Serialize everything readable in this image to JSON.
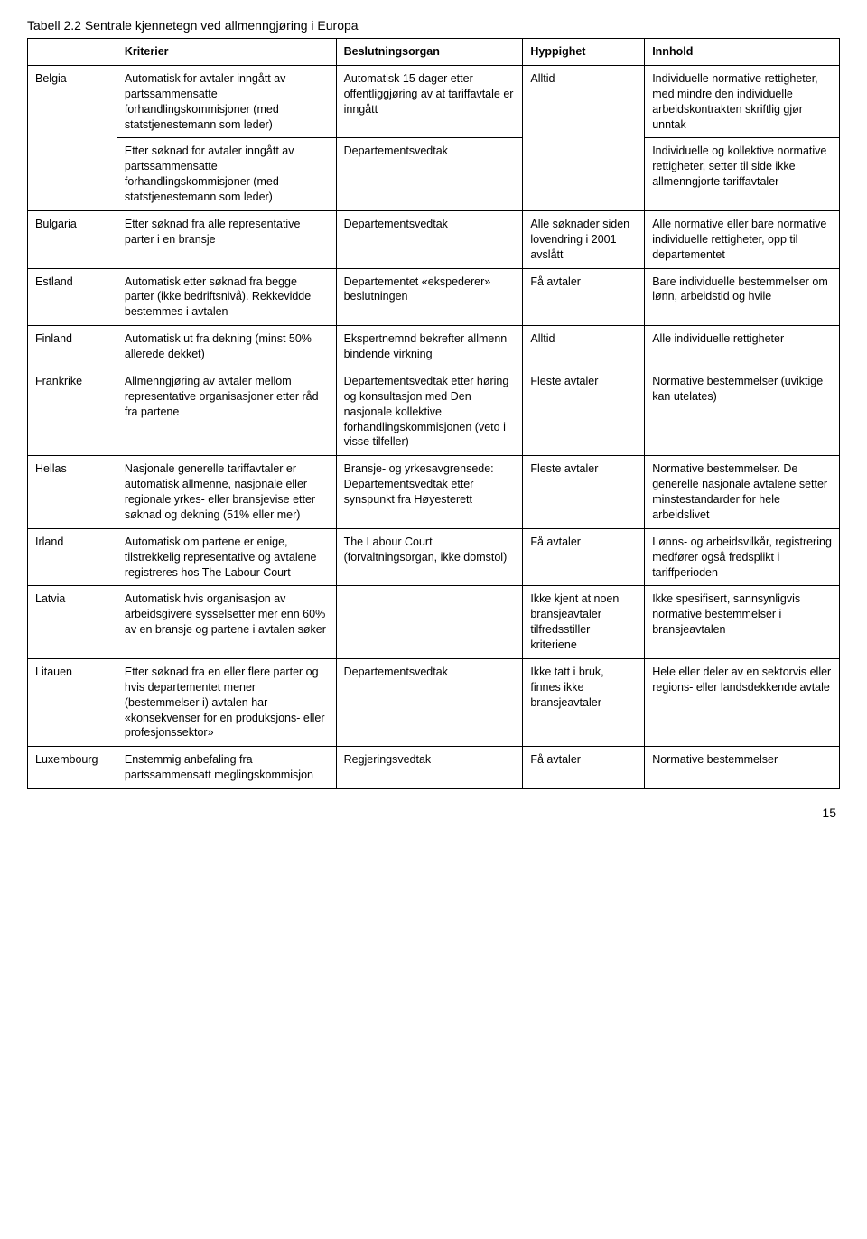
{
  "title": "Tabell 2.2 Sentrale kjennetegn ved allmenngjøring i Europa",
  "headers": {
    "c1": "",
    "c2": "Kriterier",
    "c3": "Beslutningsorgan",
    "c4": "Hyppighet",
    "c5": "Innhold"
  },
  "rows": {
    "belgia": {
      "country": "Belgia",
      "r1": {
        "kriterier": "Automatisk for avtaler inngått av partssammensatte forhandlingskommisjoner (med statstjenestemann som leder)",
        "beslut": "Automatisk 15 dager etter offentliggjøring av at tariffavtale er inngått",
        "hypp": "Alltid",
        "innhold": "Individuelle normative rettigheter, med mindre den individuelle arbeidskontrakten skriftlig gjør unntak"
      },
      "r2": {
        "kriterier": "Etter søknad for avtaler inngått av partssammensatte forhandlingskommisjoner (med statstjenestemann som leder)",
        "beslut": "Departementsvedtak",
        "innhold": "Individuelle og kollektive normative rettigheter, setter til side ikke allmenngjorte tariffavtaler"
      }
    },
    "bulgaria": {
      "country": "Bulgaria",
      "kriterier": "Etter søknad fra alle representative parter i en bransje",
      "beslut": "Departementsvedtak",
      "hypp": "Alle søknader siden lovendring i 2001 avslått",
      "innhold": "Alle normative eller bare normative individuelle rettigheter, opp til departementet"
    },
    "estland": {
      "country": "Estland",
      "kriterier": "Automatisk etter søknad fra begge parter (ikke bedriftsnivå). Rekkevidde bestemmes i avtalen",
      "beslut": "Departementet «ekspederer» beslutningen",
      "hypp": "Få avtaler",
      "innhold": "Bare individuelle bestemmelser om lønn, arbeidstid og hvile"
    },
    "finland": {
      "country": "Finland",
      "kriterier": "Automatisk ut fra dekning (minst 50% allerede dekket)",
      "beslut": "Ekspertnemnd bekrefter allmenn bindende virkning",
      "hypp": "Alltid",
      "innhold": "Alle individuelle rettigheter"
    },
    "frankrike": {
      "country": "Frankrike",
      "kriterier": "Allmenngjøring av avtaler mellom representative organisasjoner etter råd fra partene",
      "beslut": "Departementsvedtak etter høring og konsultasjon med Den nasjonale kollektive forhandlingskommisjonen (veto i visse tilfeller)",
      "hypp": "Fleste avtaler",
      "innhold": "Normative bestemmelser (uviktige kan utelates)"
    },
    "hellas": {
      "country": "Hellas",
      "kriterier": "Nasjonale generelle tariffavtaler er automatisk allmenne, nasjonale eller regionale yrkes- eller bransjevise etter søknad og dekning (51% eller mer)",
      "beslut": "Bransje- og yrkesavgrensede: Departementsvedtak etter synspunkt fra Høyesterett",
      "hypp": "Fleste avtaler",
      "innhold": "Normative bestemmelser. De generelle nasjonale avtalene setter minstestandarder for hele arbeidslivet"
    },
    "irland": {
      "country": "Irland",
      "kriterier": "Automatisk om partene er enige, tilstrekkelig representative og avtalene registreres hos The Labour Court",
      "beslut": "The Labour Court (forvaltningsorgan, ikke domstol)",
      "hypp": "Få avtaler",
      "innhold": "Lønns- og arbeidsvilkår, registrering medfører også fredsplikt i tariffperioden"
    },
    "latvia": {
      "country": "Latvia",
      "kriterier": "Automatisk hvis organisasjon av arbeidsgivere sysselsetter mer enn 60% av en bransje og partene i avtalen søker",
      "beslut": "",
      "hypp": "Ikke kjent at noen bransjeavtaler tilfredsstiller kriteriene",
      "innhold": "Ikke spesifisert, sannsynligvis normative bestemmelser i bransjeavtalen"
    },
    "litauen": {
      "country": "Litauen",
      "kriterier": "Etter søknad fra en eller flere parter og hvis departementet mener (bestemmelser i) avtalen har «konsekvenser for en produksjons- eller profesjonssektor»",
      "beslut": "Departementsvedtak",
      "hypp": "Ikke tatt i bruk, finnes ikke bransjeavtaler",
      "innhold": "Hele eller deler av en sektorvis eller regions- eller landsdekkende avtale"
    },
    "luxembourg": {
      "country": "Luxembourg",
      "kriterier": "Enstemmig anbefaling fra partssammensatt meglingskommisjon",
      "beslut": "Regjeringsvedtak",
      "hypp": "Få avtaler",
      "innhold": "Normative bestemmelser"
    }
  },
  "page_number": "15"
}
